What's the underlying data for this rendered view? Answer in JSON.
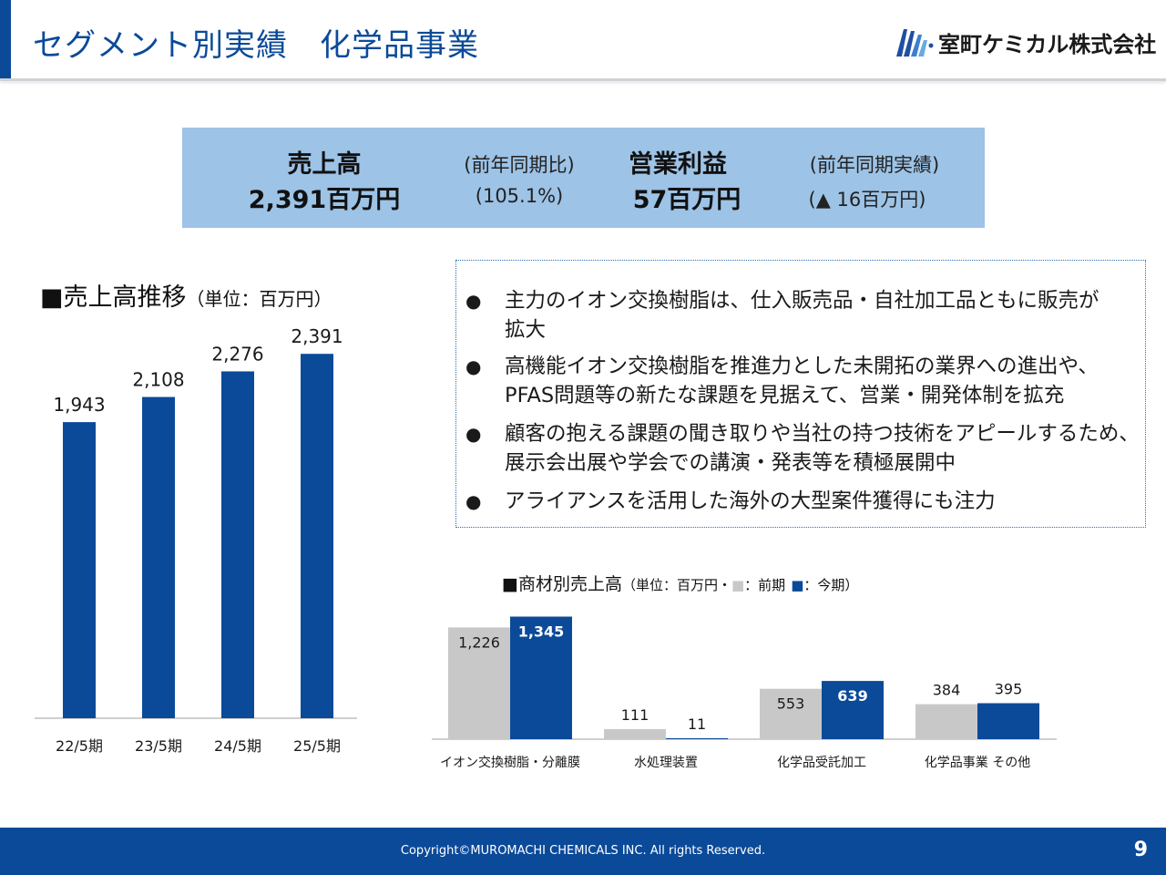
{
  "header": {
    "title": "セグメント別実績　化学品事業",
    "company": "室町ケミカル株式会社"
  },
  "summary": {
    "sales_label": "売上高",
    "sales_value": "2,391百万円",
    "sales_compare_label": "(前年同期比)",
    "sales_compare_value": "(105.1%)",
    "op_label": "営業利益",
    "op_value": "57百万円",
    "op_compare_label": "(前年同期実績)",
    "op_compare_value": "(▲ 16百万円)"
  },
  "left_title": {
    "main": "■売上高推移",
    "unit": "（単位：百万円）"
  },
  "bullets": [
    {
      "mark": "●",
      "text": "主力のイオン交換樹脂は、仕入販売品・自社加工品ともに販売が\n拡大"
    },
    {
      "mark": "●",
      "text": "高機能イオン交換樹脂を推進力とした未開拓の業界への進出や、\nPFAS問題等の新たな課題を見据えて、営業・開発体制を拡充"
    },
    {
      "mark": "●",
      "text": "顧客の抱える課題の聞き取りや当社の持つ技術をアピールするため、\n展示会出展や学会での講演・発表等を積極展開中"
    },
    {
      "mark": "●",
      "text": "アライアンスを活用した海外の大型案件獲得にも注力"
    }
  ],
  "right_title": {
    "main": "■商材別売上高",
    "unit_prefix": "（単位：百万円・",
    "prev_mark": "■",
    "prev_label": "：前期",
    "curr_mark": "■",
    "curr_label": "：今期）"
  },
  "chart_data": [
    {
      "type": "bar",
      "title": "売上高推移",
      "unit": "百万円",
      "categories": [
        "22/5期",
        "23/5期",
        "24/5期",
        "25/5期"
      ],
      "values": [
        1943,
        2108,
        2276,
        2391
      ],
      "value_labels": [
        "1,943",
        "2,108",
        "2,276",
        "2,391"
      ],
      "ylim": [
        0,
        2500
      ],
      "grid": false,
      "color": "#0b4a99"
    },
    {
      "type": "bar",
      "title": "商材別売上高",
      "unit": "百万円",
      "categories": [
        "イオン交換樹脂・分離膜",
        "水処理装置",
        "化学品受託加工",
        "化学品事業 その他"
      ],
      "series": [
        {
          "name": "前期",
          "values": [
            1226,
            111,
            553,
            384
          ],
          "labels": [
            "1,226",
            "111",
            "553",
            "384"
          ],
          "color": "#c8c8c8"
        },
        {
          "name": "今期",
          "values": [
            1345,
            11,
            639,
            395
          ],
          "labels": [
            "1,345",
            "11",
            "639",
            "395"
          ],
          "color": "#0b4a99"
        }
      ],
      "ylim": [
        0,
        1400
      ],
      "grid": false
    }
  ],
  "footer": {
    "copyright": "Copyright©MUROMACHI CHEMICALS INC. All rights Reserved.",
    "page": "9"
  }
}
